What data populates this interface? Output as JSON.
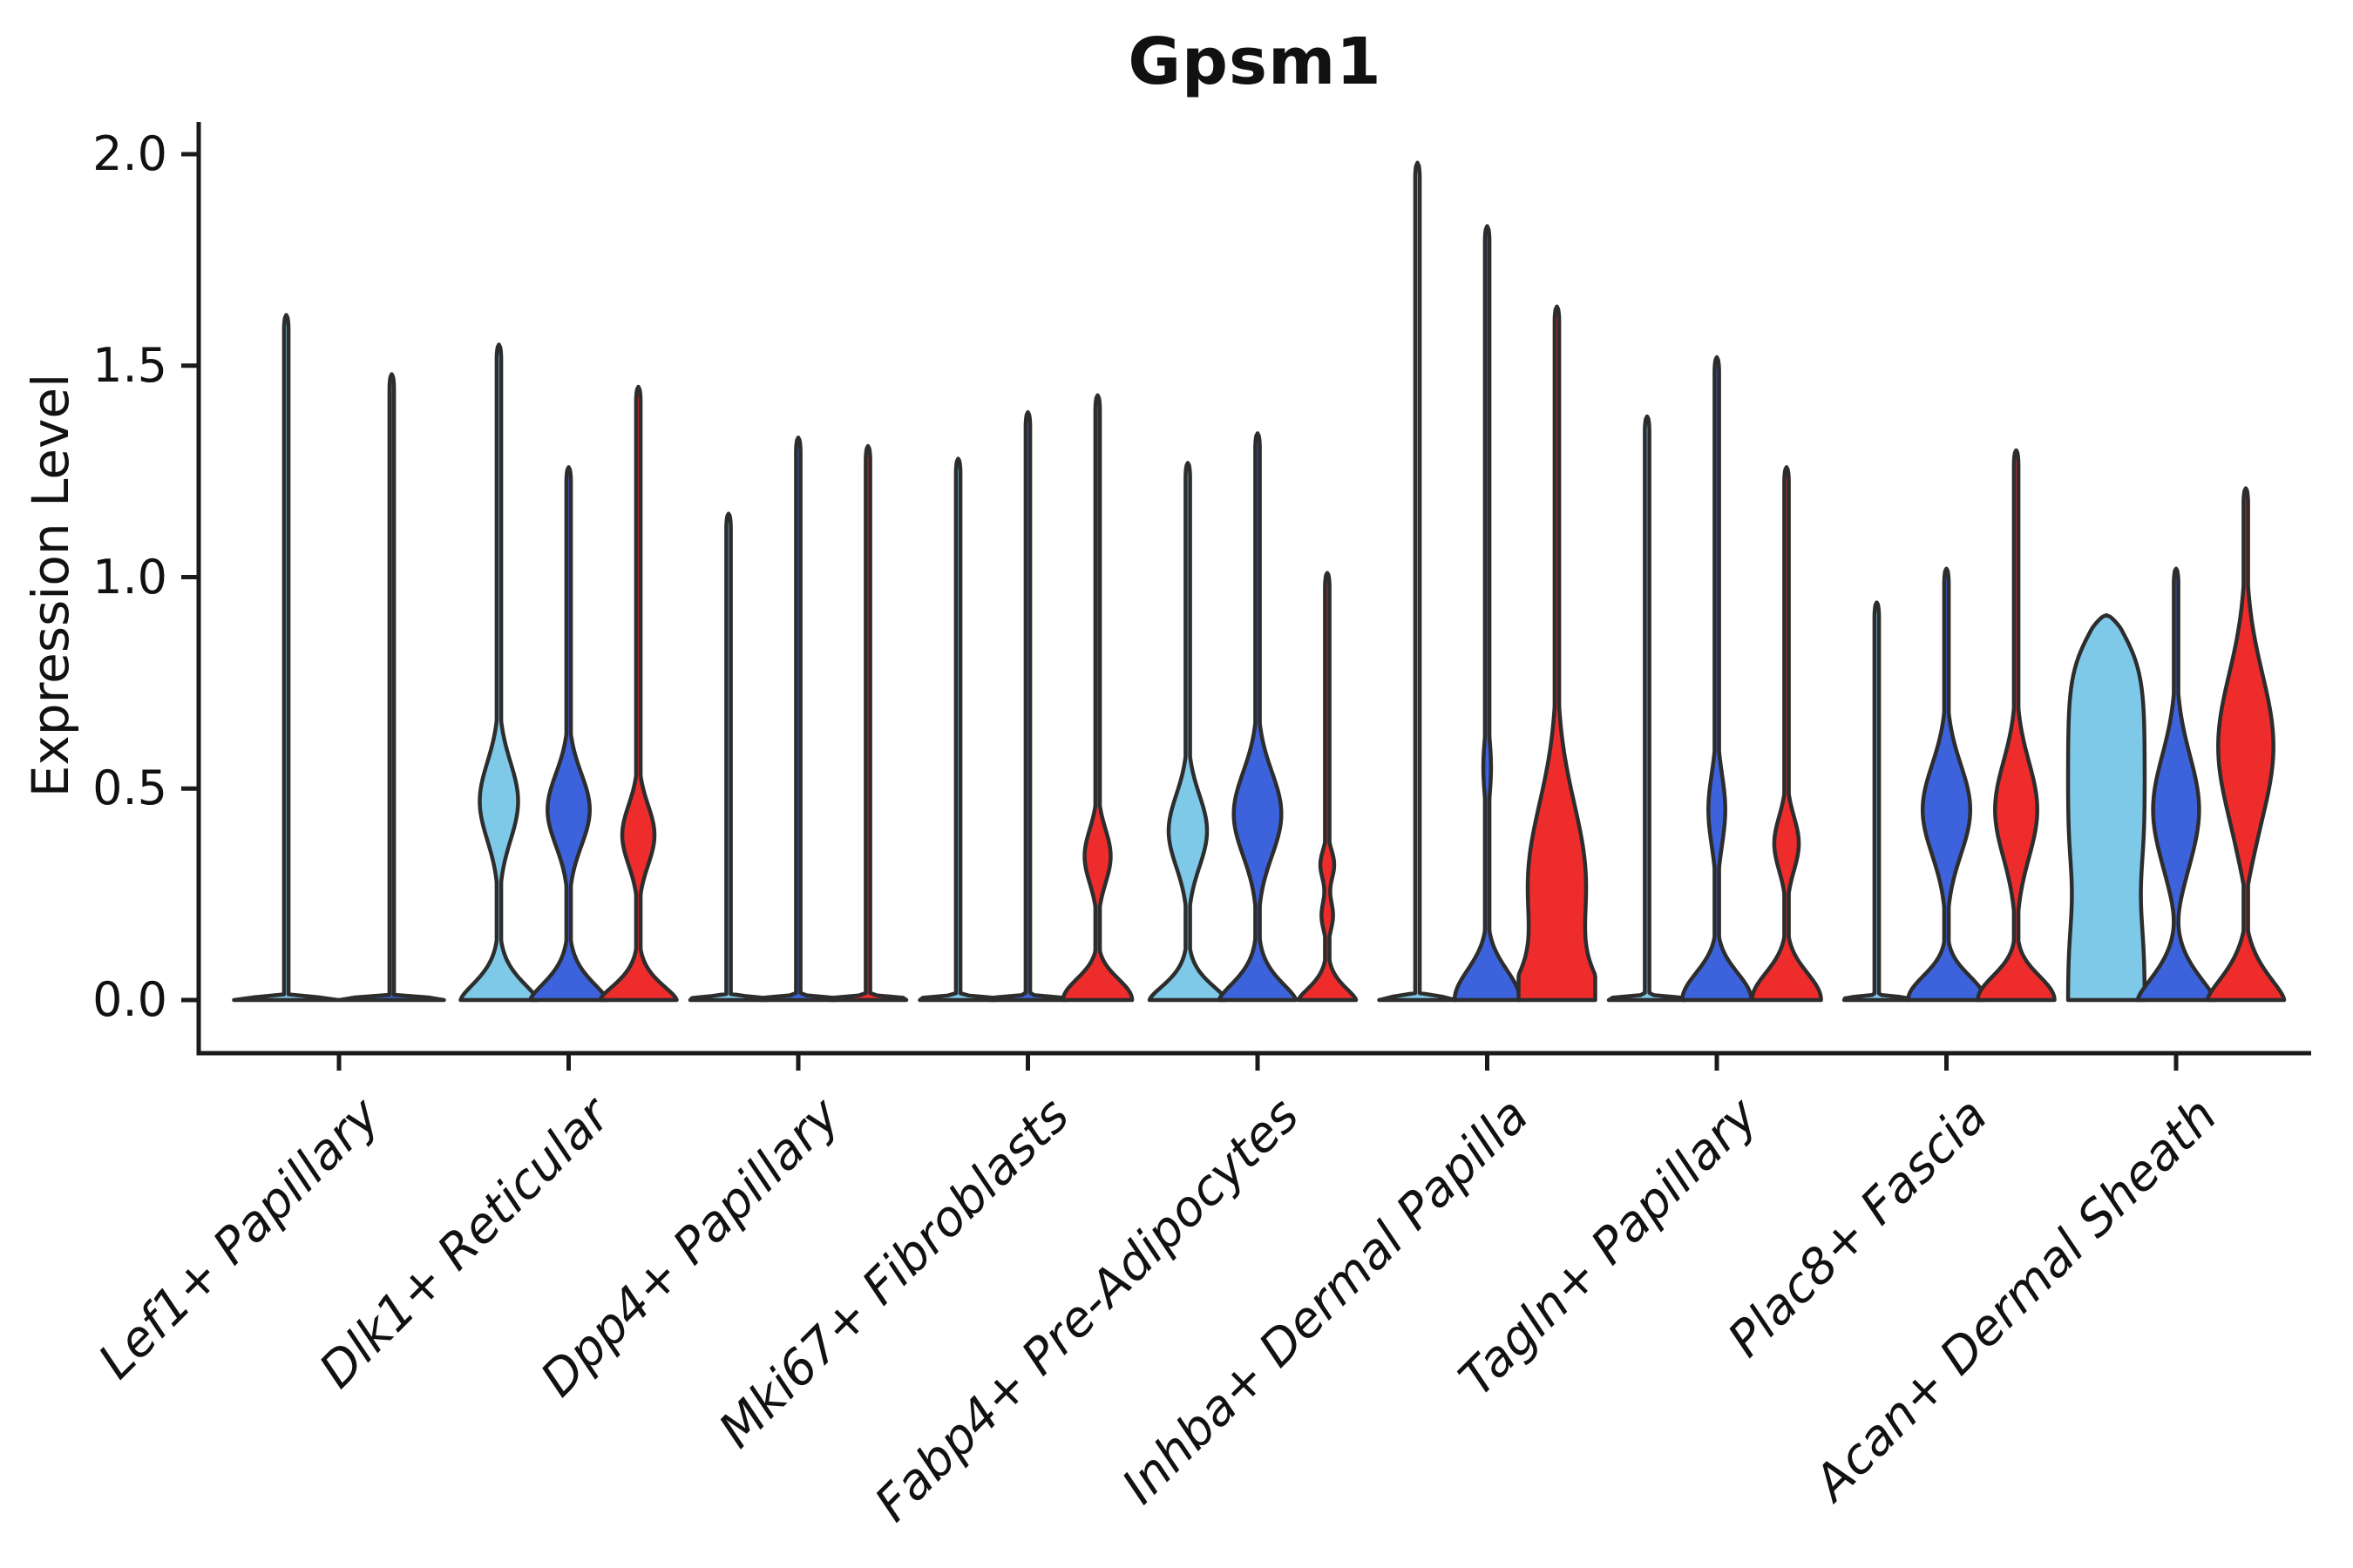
{
  "figure": {
    "title": "Gpsm1"
  },
  "chart_data": {
    "type": "violin",
    "title": "Gpsm1",
    "xlabel": "",
    "ylabel": "Expression Level",
    "ylim": [
      0,
      2.0
    ],
    "y_ticks": [
      0.0,
      0.5,
      1.0,
      1.5,
      2.0
    ],
    "grid": false,
    "legend": "none",
    "colors": {
      "light_blue": "#7EC8E8",
      "dark_blue": "#3D63DC",
      "red": "#EE2C2C"
    },
    "outline_color": "#2D2D2D",
    "axis_color": "#1A1A1A",
    "categories": [
      "Lef1+ Papillary",
      "Dlk1+ Reticular",
      "Dpp4+ Papillary",
      "Mki67+ Fibroblasts",
      "Fabp4+ Pre-Adipocytes",
      "Inhba+ Dermal Papilla",
      "Tagln+ Papillary",
      "Plac8+ Fascia",
      "Acan+ Dermal Sheath"
    ],
    "violins": [
      {
        "category": "Lef1+ Papillary",
        "series": [
          {
            "color": "light_blue",
            "max": 1.62,
            "base": {
              "a": 1,
              "s": 0.008,
              "p": 4
            },
            "bulges": []
          },
          {
            "color": "dark_blue",
            "max": 1.48,
            "base": {
              "a": 1,
              "s": 0.008,
              "p": 4
            },
            "bulges": []
          }
        ]
      },
      {
        "category": "Dlk1+ Reticular",
        "series": [
          {
            "color": "light_blue",
            "max": 1.55,
            "base": {
              "a": 1,
              "s": 0.07,
              "p": 1.5
            },
            "bulges": [
              {
                "c": 0.47,
                "s": 0.13,
                "a": 0.5
              }
            ]
          },
          {
            "color": "dark_blue",
            "max": 1.26,
            "base": {
              "a": 1,
              "s": 0.07,
              "p": 1.5
            },
            "bulges": [
              {
                "c": 0.45,
                "s": 0.12,
                "a": 0.55
              }
            ]
          },
          {
            "color": "red",
            "max": 1.45,
            "base": {
              "a": 1,
              "s": 0.06,
              "p": 1.5
            },
            "bulges": [
              {
                "c": 0.39,
                "s": 0.1,
                "a": 0.42
              }
            ]
          }
        ]
      },
      {
        "category": "Dpp4+ Papillary",
        "series": [
          {
            "color": "light_blue",
            "max": 1.15,
            "base": {
              "a": 1,
              "s": 0.01,
              "p": 4
            },
            "bulges": []
          },
          {
            "color": "dark_blue",
            "max": 1.33,
            "base": {
              "a": 1,
              "s": 0.01,
              "p": 4
            },
            "bulges": []
          },
          {
            "color": "red",
            "max": 1.31,
            "base": {
              "a": 1,
              "s": 0.01,
              "p": 4
            },
            "bulges": []
          }
        ]
      },
      {
        "category": "Mki67+ Fibroblasts",
        "series": [
          {
            "color": "light_blue",
            "max": 1.28,
            "base": {
              "a": 1,
              "s": 0.01,
              "p": 4
            },
            "bulges": []
          },
          {
            "color": "dark_blue",
            "max": 1.39,
            "base": {
              "a": 1,
              "s": 0.01,
              "p": 4
            },
            "bulges": []
          },
          {
            "color": "red",
            "max": 1.43,
            "base": {
              "a": 0.9,
              "s": 0.07,
              "p": 2
            },
            "bulges": [
              {
                "c": 0.34,
                "s": 0.09,
                "a": 0.34
              }
            ]
          }
        ]
      },
      {
        "category": "Fabp4+ Pre-Adipocytes",
        "series": [
          {
            "color": "light_blue",
            "max": 1.27,
            "base": {
              "a": 1,
              "s": 0.06,
              "p": 1.5
            },
            "bulges": [
              {
                "c": 0.4,
                "s": 0.12,
                "a": 0.5
              }
            ]
          },
          {
            "color": "dark_blue",
            "max": 1.34,
            "base": {
              "a": 1,
              "s": 0.07,
              "p": 1.5
            },
            "bulges": [
              {
                "c": 0.44,
                "s": 0.14,
                "a": 0.62
              }
            ]
          },
          {
            "color": "red",
            "max": 1.01,
            "base": {
              "a": 0.75,
              "s": 0.05,
              "p": 1.5
            },
            "bulges": [
              {
                "c": 0.32,
                "s": 0.05,
                "a": 0.18
              },
              {
                "c": 0.2,
                "s": 0.05,
                "a": 0.15
              }
            ]
          }
        ]
      },
      {
        "category": "Inhba+ Dermal Papilla",
        "series": [
          {
            "color": "light_blue",
            "max": 1.98,
            "base": {
              "a": 1,
              "s": 0.01,
              "p": 4
            },
            "bulges": []
          },
          {
            "color": "dark_blue",
            "max": 1.83,
            "base": {
              "a": 0.85,
              "s": 0.1,
              "p": 2
            },
            "bulges": [
              {
                "c": 0.55,
                "s": 0.1,
                "a": 0.1
              }
            ]
          },
          {
            "color": "red",
            "max": 1.64,
            "base": {
              "a": 1,
              "s": 0.1,
              "p": 1.5
            },
            "bulges": [
              {
                "c": 0.28,
                "s": 0.26,
                "a": 0.75
              }
            ]
          }
        ]
      },
      {
        "category": "Tagln+ Papillary",
        "series": [
          {
            "color": "light_blue",
            "max": 1.38,
            "base": {
              "a": 1,
              "s": 0.01,
              "p": 4
            },
            "bulges": []
          },
          {
            "color": "dark_blue",
            "max": 1.52,
            "base": {
              "a": 0.9,
              "s": 0.09,
              "p": 2
            },
            "bulges": [
              {
                "c": 0.45,
                "s": 0.12,
                "a": 0.22
              }
            ]
          },
          {
            "color": "red",
            "max": 1.26,
            "base": {
              "a": 0.9,
              "s": 0.09,
              "p": 2
            },
            "bulges": [
              {
                "c": 0.37,
                "s": 0.09,
                "a": 0.32
              }
            ]
          }
        ]
      },
      {
        "category": "Plac8+ Fascia",
        "series": [
          {
            "color": "light_blue",
            "max": 0.94,
            "base": {
              "a": 0.85,
              "s": 0.01,
              "p": 4
            },
            "bulges": []
          },
          {
            "color": "dark_blue",
            "max": 1.02,
            "base": {
              "a": 1,
              "s": 0.08,
              "p": 2
            },
            "bulges": [
              {
                "c": 0.45,
                "s": 0.15,
                "a": 0.62
              }
            ]
          },
          {
            "color": "red",
            "max": 1.3,
            "base": {
              "a": 1,
              "s": 0.08,
              "p": 2
            },
            "bulges": [
              {
                "c": 0.45,
                "s": 0.16,
                "a": 0.55
              }
            ]
          }
        ]
      },
      {
        "category": "Acan+ Dermal Sheath",
        "series": [
          {
            "color": "light_blue",
            "max": 0.91,
            "base": {
              "a": 1,
              "s": 0.88,
              "p": 14
            },
            "bulges": [
              {
                "c": 0.25,
                "s": 0.12,
                "a": -0.1
              }
            ]
          },
          {
            "color": "dark_blue",
            "max": 1.02,
            "base": {
              "a": 1,
              "s": 0.09,
              "p": 1.5
            },
            "bulges": [
              {
                "c": 0.45,
                "s": 0.18,
                "a": 0.6
              },
              {
                "c": 0.18,
                "s": 0.08,
                "a": -0.06
              }
            ]
          },
          {
            "color": "red",
            "max": 1.21,
            "base": {
              "a": 1,
              "s": 0.09,
              "p": 1.5
            },
            "bulges": [
              {
                "c": 0.6,
                "s": 0.24,
                "a": 0.72
              },
              {
                "c": 0.22,
                "s": 0.09,
                "a": -0.08
              }
            ]
          }
        ]
      }
    ]
  }
}
